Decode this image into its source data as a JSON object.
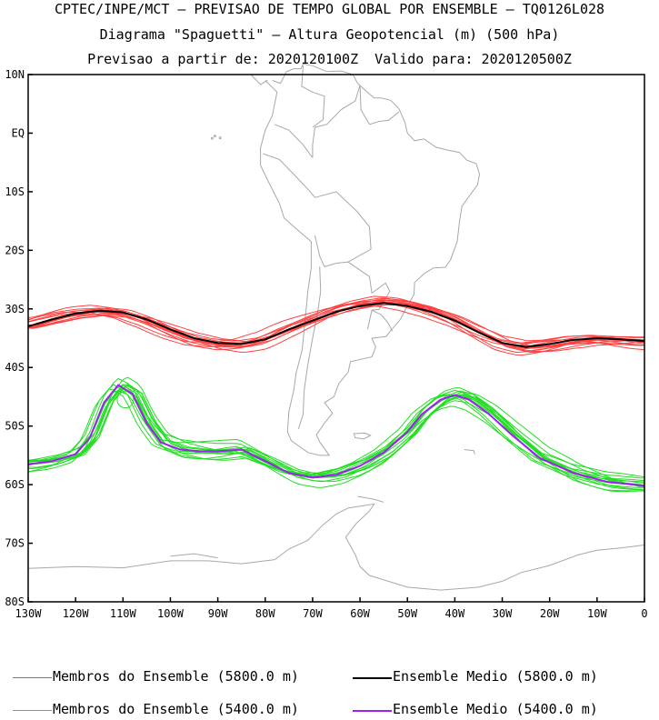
{
  "title": {
    "line1": "CPTEC/INPE/MCT – PREVISAO DE TEMPO GLOBAL POR ENSEMBLE – TQ0126L028",
    "line2": "Diagrama \"Spaguetti\" – Altura Geopotencial (m) (500 hPa)",
    "line3": "Previsao a partir de: 2020120100Z  Valido para: 2020120500Z"
  },
  "chart_data": {
    "type": "line",
    "x_range": [
      -130,
      0
    ],
    "y_range": [
      -80,
      10
    ],
    "x_ticks": [
      {
        "v": -130,
        "label": "130W"
      },
      {
        "v": -120,
        "label": "120W"
      },
      {
        "v": -110,
        "label": "110W"
      },
      {
        "v": -100,
        "label": "100W"
      },
      {
        "v": -90,
        "label": "90W"
      },
      {
        "v": -80,
        "label": "80W"
      },
      {
        "v": -70,
        "label": "70W"
      },
      {
        "v": -60,
        "label": "60W"
      },
      {
        "v": -50,
        "label": "50W"
      },
      {
        "v": -40,
        "label": "40W"
      },
      {
        "v": -30,
        "label": "30W"
      },
      {
        "v": -20,
        "label": "20W"
      },
      {
        "v": -10,
        "label": "10W"
      },
      {
        "v": 0,
        "label": "0"
      }
    ],
    "y_ticks": [
      {
        "v": 10,
        "label": "10N"
      },
      {
        "v": 0,
        "label": "EQ"
      },
      {
        "v": -10,
        "label": "10S"
      },
      {
        "v": -20,
        "label": "20S"
      },
      {
        "v": -30,
        "label": "30S"
      },
      {
        "v": -40,
        "label": "40S"
      },
      {
        "v": -50,
        "label": "50S"
      },
      {
        "v": -60,
        "label": "60S"
      },
      {
        "v": -70,
        "label": "70S"
      },
      {
        "v": -80,
        "label": "80S"
      }
    ],
    "colors": {
      "members_5800": "#ff4040",
      "mean_5800": "#000000",
      "members_5400": "#22dd22",
      "mean_5400": "#a020f0",
      "coast": "#a8a8a8"
    },
    "mean_5800": {
      "name": "Ensemble Medio (5800.0 m)",
      "lon": [
        -130,
        -125,
        -120,
        -115,
        -110,
        -105,
        -100,
        -95,
        -90,
        -85,
        -80,
        -75,
        -70,
        -65,
        -60,
        -55,
        -50,
        -45,
        -40,
        -35,
        -30,
        -25,
        -20,
        -15,
        -10,
        -5,
        0
      ],
      "lat": [
        -33,
        -31.8,
        -30.8,
        -30.3,
        -30.6,
        -31.8,
        -33.5,
        -35,
        -35.8,
        -36,
        -35.2,
        -33.5,
        -32,
        -30.5,
        -29.5,
        -29,
        -29.5,
        -30.5,
        -32,
        -34,
        -35.8,
        -36.5,
        -36,
        -35.3,
        -35,
        -35.2,
        -35.5
      ]
    },
    "mean_5400": {
      "name": "Ensemble Medio (5400.0 m)",
      "lon": [
        -130,
        -125,
        -120,
        -117,
        -114,
        -111,
        -108,
        -105,
        -102,
        -98,
        -94,
        -90,
        -85,
        -80,
        -75,
        -70,
        -65,
        -60,
        -55,
        -50,
        -47,
        -43,
        -40,
        -37,
        -33,
        -28,
        -22,
        -15,
        -8,
        0
      ],
      "lat": [
        -56.5,
        -56,
        -54.8,
        -52,
        -46,
        -43,
        -44.5,
        -49.5,
        -52.8,
        -54,
        -54.3,
        -54.3,
        -54,
        -56,
        -58,
        -58.8,
        -58.3,
        -56.8,
        -54.5,
        -51,
        -48,
        -45.5,
        -44.7,
        -45.5,
        -47.8,
        -51.5,
        -55.5,
        -58,
        -59.5,
        -60.2
      ]
    },
    "members_5800": {
      "name": "Membros do Ensemble (5800.0 m)",
      "count": 14,
      "spread_deg": 2.2
    },
    "members_5400": {
      "name": "Membros do Ensemble (5400.0 m)",
      "count": 14,
      "spread_deg": 3
    }
  },
  "legend": {
    "members_5800": "Membros do Ensemble (5800.0 m)",
    "mean_5800": "Ensemble Medio (5800.0 m)",
    "members_5400": "Membros do Ensemble (5400.0 m)",
    "mean_5400": "Ensemble Medio (5400.0 m)"
  }
}
